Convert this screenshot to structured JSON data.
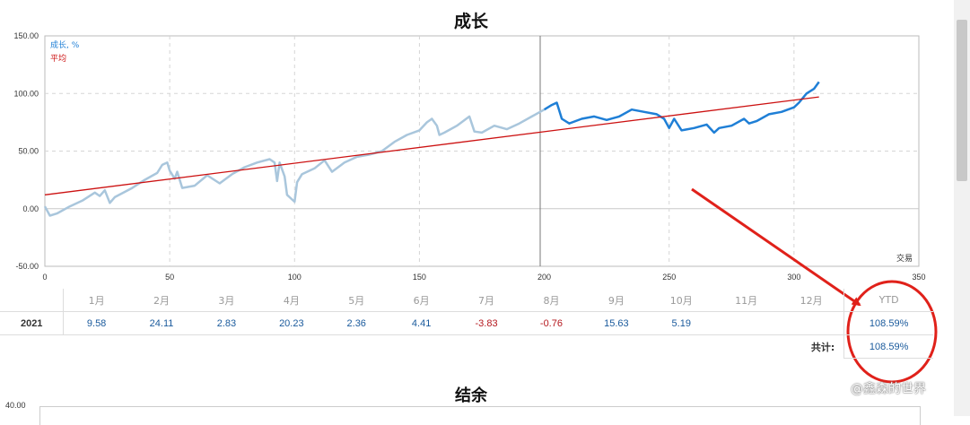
{
  "chart_data": {
    "type": "line",
    "title": "成长",
    "xlim": [
      0,
      350
    ],
    "ylim": [
      -50,
      150
    ],
    "x_ticks": [
      "0",
      "50",
      "100",
      "150",
      "200",
      "250",
      "300",
      "350"
    ],
    "y_ticks": [
      "150.00",
      "100.00",
      "50.00",
      "0.00",
      "-50.00"
    ],
    "x_unit_label": "交易",
    "grid": true,
    "legend_position": "top-left",
    "series": [
      {
        "name": "成长, %",
        "color": "#1f7fd6",
        "past_color": "#a9c6dc",
        "split_x": 200,
        "points": [
          [
            0,
            2
          ],
          [
            2,
            -6
          ],
          [
            5,
            -4
          ],
          [
            10,
            2
          ],
          [
            15,
            7
          ],
          [
            20,
            14
          ],
          [
            22,
            11
          ],
          [
            24,
            16
          ],
          [
            26,
            5
          ],
          [
            28,
            10
          ],
          [
            35,
            18
          ],
          [
            40,
            25
          ],
          [
            45,
            31
          ],
          [
            47,
            38
          ],
          [
            49,
            40
          ],
          [
            50,
            33
          ],
          [
            52,
            26
          ],
          [
            53,
            32
          ],
          [
            55,
            18
          ],
          [
            60,
            20
          ],
          [
            65,
            29
          ],
          [
            70,
            22
          ],
          [
            75,
            30
          ],
          [
            80,
            36
          ],
          [
            85,
            40
          ],
          [
            90,
            43
          ],
          [
            92,
            40
          ],
          [
            93,
            24
          ],
          [
            94,
            40
          ],
          [
            96,
            28
          ],
          [
            97,
            12
          ],
          [
            99,
            8
          ],
          [
            100,
            6
          ],
          [
            101,
            23
          ],
          [
            103,
            30
          ],
          [
            108,
            35
          ],
          [
            112,
            42
          ],
          [
            115,
            32
          ],
          [
            120,
            40
          ],
          [
            125,
            45
          ],
          [
            130,
            47
          ],
          [
            135,
            50
          ],
          [
            140,
            58
          ],
          [
            145,
            64
          ],
          [
            150,
            68
          ],
          [
            153,
            75
          ],
          [
            155,
            78
          ],
          [
            157,
            72
          ],
          [
            158,
            64
          ],
          [
            160,
            66
          ],
          [
            165,
            72
          ],
          [
            170,
            80
          ],
          [
            172,
            67
          ],
          [
            175,
            66
          ],
          [
            180,
            72
          ],
          [
            185,
            69
          ],
          [
            190,
            74
          ],
          [
            195,
            80
          ],
          [
            200,
            86
          ],
          [
            203,
            90
          ],
          [
            205,
            92
          ],
          [
            207,
            78
          ],
          [
            210,
            74
          ],
          [
            215,
            78
          ],
          [
            220,
            80
          ],
          [
            225,
            77
          ],
          [
            230,
            80
          ],
          [
            235,
            86
          ],
          [
            240,
            84
          ],
          [
            245,
            82
          ],
          [
            248,
            78
          ],
          [
            250,
            70
          ],
          [
            252,
            78
          ],
          [
            255,
            68
          ],
          [
            260,
            70
          ],
          [
            265,
            73
          ],
          [
            268,
            66
          ],
          [
            270,
            70
          ],
          [
            275,
            72
          ],
          [
            280,
            78
          ],
          [
            282,
            74
          ],
          [
            285,
            76
          ],
          [
            290,
            82
          ],
          [
            295,
            84
          ],
          [
            300,
            88
          ],
          [
            302,
            92
          ],
          [
            305,
            100
          ],
          [
            308,
            104
          ],
          [
            310,
            110
          ]
        ]
      },
      {
        "name": "平均",
        "color": "#cc1111",
        "points": [
          [
            0,
            12
          ],
          [
            310,
            97
          ]
        ]
      }
    ]
  },
  "monthly": {
    "months": [
      "1月",
      "2月",
      "3月",
      "4月",
      "5月",
      "6月",
      "7月",
      "8月",
      "9月",
      "10月",
      "11月",
      "12月"
    ],
    "ytd_label": "YTD",
    "year": "2021",
    "values": [
      "9.58",
      "24.11",
      "2.83",
      "20.23",
      "2.36",
      "4.41",
      "-3.83",
      "-0.76",
      "15.63",
      "5.19",
      "",
      ""
    ],
    "ytd_value": "108.59%",
    "total_label": "共计:",
    "total_value": "108.59%"
  },
  "balance": {
    "title": "结余",
    "top_tick": "40.00"
  },
  "annotation": {
    "arrow_color": "#e0211a",
    "circle_color": "#e0211a"
  },
  "watermark": "@鑫森的世界"
}
